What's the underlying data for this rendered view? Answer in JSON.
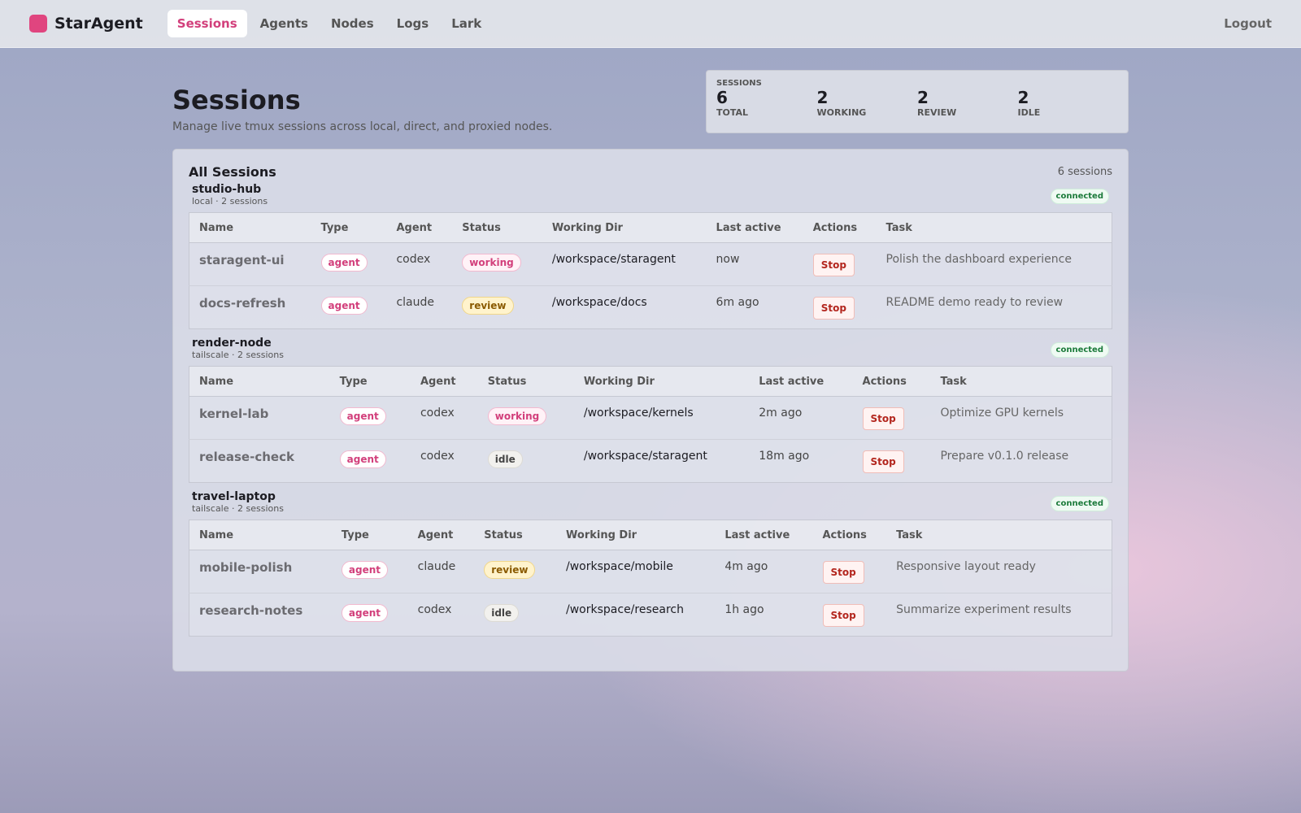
{
  "nav": {
    "brand": "StarAgent",
    "links": [
      "Sessions",
      "Agents",
      "Nodes",
      "Logs",
      "Lark"
    ],
    "logout": "Logout"
  },
  "header": {
    "title": "Sessions",
    "subtitle": "Manage live tmux sessions across local, direct, and proxied nodes."
  },
  "summary": {
    "label": "SESSIONS",
    "stats": [
      {
        "value": 6,
        "label": "TOTAL"
      },
      {
        "value": 2,
        "label": "WORKING"
      },
      {
        "value": 2,
        "label": "REVIEW"
      },
      {
        "value": 2,
        "label": "IDLE"
      }
    ]
  },
  "panel": {
    "title": "All Sessions",
    "count": "6 sessions",
    "columns": [
      "Name",
      "Type",
      "Agent",
      "Status",
      "Working Dir",
      "Last active",
      "Actions",
      "Task"
    ],
    "groups": [
      {
        "name": "studio-hub",
        "meta": "local · 2 sessions",
        "status": "connected",
        "rows": [
          [
            "staragent-ui",
            "agent",
            "codex",
            "working",
            "/workspace/staragent",
            "now",
            "Stop",
            "Polish the dashboard experience"
          ],
          [
            "docs-refresh",
            "agent",
            "claude",
            "review",
            "/workspace/docs",
            "6m ago",
            "Stop",
            "README demo ready to review"
          ]
        ]
      },
      {
        "name": "render-node",
        "meta": "tailscale · 2 sessions",
        "status": "connected",
        "rows": [
          [
            "kernel-lab",
            "agent",
            "codex",
            "working",
            "/workspace/kernels",
            "2m ago",
            "Stop",
            "Optimize GPU kernels"
          ],
          [
            "release-check",
            "agent",
            "codex",
            "idle",
            "/workspace/staragent",
            "18m ago",
            "Stop",
            "Prepare v0.1.0 release"
          ]
        ]
      },
      {
        "name": "travel-laptop",
        "meta": "tailscale · 2 sessions",
        "status": "connected",
        "rows": [
          [
            "mobile-polish",
            "agent",
            "claude",
            "review",
            "/workspace/mobile",
            "4m ago",
            "Stop",
            "Responsive layout ready"
          ],
          [
            "research-notes",
            "agent",
            "codex",
            "idle",
            "/workspace/research",
            "1h ago",
            "Stop",
            "Summarize experiment results"
          ]
        ]
      }
    ]
  }
}
